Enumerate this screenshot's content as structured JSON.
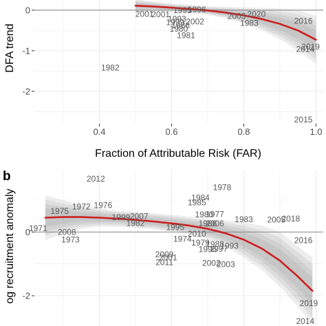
{
  "colors": {
    "panel_bg": "#ffffff",
    "grid": "#ebebeb",
    "zero_line": "#7f7f7f",
    "band": "#8c8c8c",
    "fit_line": "#cc1f1f",
    "year_label": "#595959"
  },
  "chart_data": [
    {
      "type": "scatter",
      "panel_tag": "",
      "xlabel": "Fraction of Attributable Risk (FAR)",
      "ylabel": "DFA trend",
      "xlim": [
        0.22,
        1.02
      ],
      "ylim": [
        -2.8,
        0.25
      ],
      "x_ticks": [
        0.4,
        0.6,
        0.8,
        1.0
      ],
      "x_tick_labels": [
        "0.4",
        "0.6",
        "0.8",
        "1.0"
      ],
      "y_ticks": [
        0,
        -1,
        -2
      ],
      "y_tick_labels": [
        "0",
        "-1",
        "-2"
      ],
      "grid": true,
      "points_as_year_labels": true,
      "points": [
        {
          "label": "1982",
          "x": 0.43,
          "y": -1.42
        },
        {
          "label": "2001",
          "x": 0.525,
          "y": -0.1
        },
        {
          "label": "2001",
          "x": 0.57,
          "y": -0.11
        },
        {
          "label": "1995",
          "x": 0.63,
          "y": 0.0
        },
        {
          "label": "1996",
          "x": 0.67,
          "y": 0.01
        },
        {
          "label": "2002",
          "x": 0.665,
          "y": -0.28
        },
        {
          "label": "1981",
          "x": 0.64,
          "y": -0.62
        },
        {
          "label": "1980",
          "x": 0.62,
          "y": -0.46
        },
        {
          "label": "1986",
          "x": 0.625,
          "y": -0.38
        },
        {
          "label": "1993",
          "x": 0.615,
          "y": -0.22
        },
        {
          "label": "1999",
          "x": 0.61,
          "y": -0.3
        },
        {
          "label": "2003",
          "x": 0.78,
          "y": -0.15
        },
        {
          "label": "2020",
          "x": 0.835,
          "y": -0.1
        },
        {
          "label": "1983",
          "x": 0.815,
          "y": -0.32
        },
        {
          "label": "2016",
          "x": 0.965,
          "y": -0.27
        },
        {
          "label": "2019",
          "x": 0.985,
          "y": -0.9
        },
        {
          "label": "2014",
          "x": 0.97,
          "y": -0.96
        },
        {
          "label": "2015",
          "x": 0.965,
          "y": -2.7
        }
      ],
      "fit": {
        "x": [
          0.5,
          0.55,
          0.6,
          0.65,
          0.7,
          0.75,
          0.8,
          0.85,
          0.9,
          0.95,
          1.0
        ],
        "y": [
          0.11,
          0.09,
          0.06,
          0.03,
          -0.01,
          -0.06,
          -0.13,
          -0.22,
          -0.34,
          -0.5,
          -0.73
        ],
        "lower": [
          -0.05,
          -0.03,
          -0.04,
          -0.07,
          -0.11,
          -0.2,
          -0.33,
          -0.5,
          -0.72,
          -1.0,
          -1.32
        ],
        "upper": [
          0.27,
          0.21,
          0.16,
          0.13,
          0.09,
          0.08,
          0.07,
          0.06,
          0.04,
          0.0,
          -0.14
        ]
      }
    },
    {
      "type": "scatter",
      "panel_tag": "b",
      "xlabel": "",
      "ylabel": "og recruitment anomaly",
      "xlim": [
        0.22,
        1.02
      ],
      "ylim": [
        -2.95,
        1.95
      ],
      "x_ticks": [
        0.4,
        0.6,
        0.8,
        1.0
      ],
      "y_ticks": [
        0,
        -2
      ],
      "y_tick_labels": [
        "0",
        "-2"
      ],
      "grid": true,
      "points_as_year_labels": true,
      "points": [
        {
          "label": "2012",
          "x": 0.39,
          "y": 1.67
        },
        {
          "label": "1975",
          "x": 0.29,
          "y": 0.65
        },
        {
          "label": "1972",
          "x": 0.35,
          "y": 0.79
        },
        {
          "label": "1976",
          "x": 0.41,
          "y": 0.84
        },
        {
          "label": "1999",
          "x": 0.46,
          "y": 0.46
        },
        {
          "label": "2007",
          "x": 0.51,
          "y": 0.49
        },
        {
          "label": "1982",
          "x": 0.5,
          "y": 0.28
        },
        {
          "label": "1971",
          "x": 0.23,
          "y": 0.12
        },
        {
          "label": "2008",
          "x": 0.31,
          "y": 0.0
        },
        {
          "label": "1973",
          "x": 0.32,
          "y": -0.24
        },
        {
          "label": "1978",
          "x": 0.74,
          "y": 1.4
        },
        {
          "label": "1984",
          "x": 0.68,
          "y": 1.08
        },
        {
          "label": "1985",
          "x": 0.67,
          "y": 0.92
        },
        {
          "label": "1977",
          "x": 0.72,
          "y": 0.56
        },
        {
          "label": "1980",
          "x": 0.69,
          "y": 0.55
        },
        {
          "label": "1995",
          "x": 0.61,
          "y": 0.15
        },
        {
          "label": "1974",
          "x": 0.63,
          "y": -0.22
        },
        {
          "label": "2010",
          "x": 0.67,
          "y": -0.06
        },
        {
          "label": "1986",
          "x": 0.7,
          "y": 0.27
        },
        {
          "label": "1979",
          "x": 0.68,
          "y": -0.34
        },
        {
          "label": "1988",
          "x": 0.72,
          "y": -0.38
        },
        {
          "label": "1997",
          "x": 0.73,
          "y": -0.53
        },
        {
          "label": "1996",
          "x": 0.7,
          "y": -0.54
        },
        {
          "label": "1993",
          "x": 0.76,
          "y": -0.43
        },
        {
          "label": "2006",
          "x": 0.72,
          "y": 0.27
        },
        {
          "label": "1983",
          "x": 0.8,
          "y": 0.4
        },
        {
          "label": "2009",
          "x": 0.58,
          "y": -0.7
        },
        {
          "label": "2001",
          "x": 0.59,
          "y": -0.8
        },
        {
          "label": "2011",
          "x": 0.58,
          "y": -0.95
        },
        {
          "label": "2002",
          "x": 0.71,
          "y": -0.98
        },
        {
          "label": "2003",
          "x": 0.75,
          "y": -1.02
        },
        {
          "label": "2005",
          "x": 0.89,
          "y": 0.38
        },
        {
          "label": "2018",
          "x": 0.93,
          "y": 0.42
        },
        {
          "label": "2016",
          "x": 0.965,
          "y": -0.26
        },
        {
          "label": "2019",
          "x": 0.98,
          "y": -2.24
        },
        {
          "label": "2014",
          "x": 0.97,
          "y": -2.8
        }
      ],
      "fit": {
        "x": [
          0.25,
          0.3,
          0.35,
          0.4,
          0.45,
          0.5,
          0.55,
          0.6,
          0.65,
          0.7,
          0.75,
          0.8,
          0.85,
          0.9,
          0.95,
          0.99
        ],
        "y": [
          0.45,
          0.47,
          0.47,
          0.45,
          0.42,
          0.38,
          0.33,
          0.27,
          0.2,
          0.1,
          -0.04,
          -0.24,
          -0.52,
          -0.9,
          -1.4,
          -1.85
        ],
        "lower": [
          -0.25,
          -0.05,
          0.1,
          0.17,
          0.17,
          0.13,
          0.08,
          0.01,
          -0.08,
          -0.22,
          -0.45,
          -0.8,
          -1.2,
          -1.72,
          -2.35,
          -2.9
        ],
        "upper": [
          1.15,
          1.0,
          0.85,
          0.74,
          0.67,
          0.63,
          0.59,
          0.54,
          0.48,
          0.42,
          0.36,
          0.3,
          0.2,
          0.0,
          -0.45,
          -0.8
        ]
      }
    }
  ]
}
